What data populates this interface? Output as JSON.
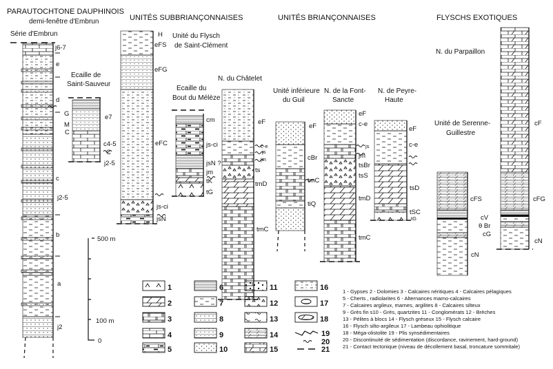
{
  "headers": {
    "parautochtone": "PARAUTOCHTONE DAUPHINOIS",
    "parautochtone_sub": "demi-fenêtre d'Embrun",
    "subbrianconnaises": "UNITÉS SUBBRIANÇONNAISES",
    "brianconnaises": "UNITÉS BRIANÇONNAISES",
    "flyschs": "FLYSCHS EXOTIQUES"
  },
  "columns": {
    "embrun": {
      "name": "Série d'Embrun",
      "labels": [
        "j6-7",
        "e",
        "d",
        "c",
        "j2-5",
        "b",
        "a",
        "j2"
      ]
    },
    "saint_sauveur": {
      "name_1": "Ecaille de",
      "name_2": "Saint-Sauveur",
      "labels": [
        "G",
        "M",
        "C",
        "e7",
        "c4-5",
        "C",
        "j2-5"
      ]
    },
    "saint_clement": {
      "name_1": "Unité du Flysch",
      "name_2": "de Saint-Clément",
      "labels": [
        "H",
        "eFS",
        "eFG",
        "eFC",
        "js-ci",
        "jsN"
      ]
    },
    "bout_du_meleze": {
      "name_1": "Ecaille du",
      "name_2": "Bout du Mélèze",
      "labels": [
        "cm",
        "js-ci",
        "jsN ?",
        "jm",
        "tK",
        "tG"
      ]
    },
    "chatelet": {
      "name": "N. du Châtelet",
      "labels": [
        "eF",
        "c-e",
        "js",
        "jm",
        "ts",
        "tmD",
        "tmC"
      ]
    },
    "guil": {
      "name_1": "Unité inférieure",
      "name_2": "du Guil",
      "labels": [
        "eF",
        "cBr",
        "tmC",
        "tiQ"
      ]
    },
    "font_sancte": {
      "name_1": "N. de la Font-",
      "name_2": "Sancte",
      "labels": [
        "eF",
        "c-e",
        "js",
        "jm",
        "tsBr",
        "tsS",
        "tmD",
        "tmC"
      ]
    },
    "peyre_haute": {
      "name_1": "N. de Peyre-",
      "name_2": "Haute",
      "labels": [
        "eF",
        "c-e",
        "tsD",
        "tSC",
        "tG"
      ]
    },
    "parpaillon": {
      "name": "N. du Parpaillon",
      "labels": [
        "cF",
        "cFG",
        "cN"
      ]
    },
    "serenne": {
      "name_1": "Unité de Serenne-",
      "name_2": "Guillestre",
      "labels": [
        "cFS",
        "cV",
        "θ Br",
        "cG",
        "cN"
      ]
    }
  },
  "scale": {
    "labels": [
      "500 m",
      "100 m",
      "0"
    ]
  },
  "legend": {
    "numbers": [
      "1",
      "2",
      "3",
      "4",
      "5",
      "6",
      "7",
      "8",
      "9",
      "10",
      "11",
      "12",
      "13",
      "14",
      "15",
      "16",
      "17",
      "18",
      "19",
      "20",
      "21"
    ],
    "patterns": [
      "gypsum",
      "dolomite",
      "neritic-limestone",
      "pelagic-limestone",
      "chert",
      "marl-limestone-alternation",
      "shale",
      "silty-limestone",
      "fine-sandstone",
      "sandstone",
      "conglomerate",
      "breccia",
      "block-pelite",
      "sandy-flysch",
      "calcareous-flysch",
      "silty-flysch",
      "ophiolite",
      "mega-olistolith",
      "synsedimentary-fold",
      "discontinuity",
      "tectonic-contact"
    ],
    "lines": [
      "1 - Gypses  2 - Dolomies  3 - Calcaires néritiques  4 - Calcaires pélagiques",
      "5 - Cherts , radiolarites    6 - Alternances marno-calcaires",
      "7 - Calcaires argileux, marnes, argilites     8 - Calcaires silteux",
      "9 - Grès fin s10 - Grès, quartzites 11 - Conglomérats  12 - Brèches",
      "13 - Pélites à blocs  14 - Flysch gréseux 15 - Flysch  calcaire",
      "16 - Flysch silto-argileux  17 - Lambeau ophiolitique",
      "18 - Méga-olistolite    19 - Plis synsédimentaires",
      "20 - Discontinuité  de sédimentation (discordance, ravinement, hard-ground)",
      "21 - Contact tectonique (niveau de décollement basal, troncature sommitale)"
    ]
  }
}
